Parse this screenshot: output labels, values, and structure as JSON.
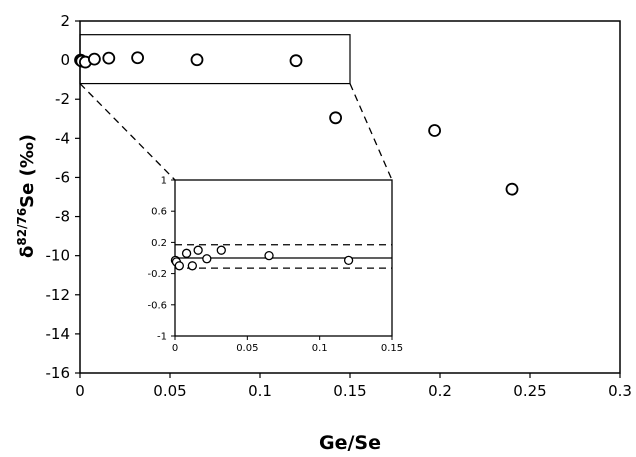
{
  "chart_data": [
    {
      "type": "scatter",
      "xlabel": "Ge/Se",
      "ylabel_main": "Se (‰)",
      "ylabel_delta": "δ",
      "ylabel_sup": "82/76",
      "xlim": [
        0,
        0.3
      ],
      "ylim": [
        -16,
        2
      ],
      "xticks": [
        "0",
        "0.05",
        "0.1",
        "0.15",
        "0.2",
        "0.25",
        "0.3"
      ],
      "yticks": [
        "2",
        "0",
        "-2",
        "-4",
        "-6",
        "-8",
        "-10",
        "-12",
        "-14",
        "-16"
      ],
      "grid": false,
      "series": [
        {
          "x": [
            0.0003,
            0.001,
            0.003,
            0.008,
            0.016,
            0.032,
            0.065,
            0.12,
            0.142,
            0.197,
            0.24
          ],
          "y": [
            0.0,
            -0.05,
            -0.1,
            0.05,
            0.1,
            0.12,
            0.02,
            -0.03,
            -2.95,
            -3.6,
            -6.6
          ]
        }
      ],
      "zoom_box": {
        "x": [
          0,
          0.15
        ],
        "y": [
          -1.2,
          1.3
        ]
      }
    },
    {
      "type": "scatter",
      "role": "inset",
      "xlim": [
        0,
        0.15
      ],
      "ylim": [
        -1,
        1
      ],
      "xticks": [
        "0",
        "0.05",
        "0.1",
        "0.15"
      ],
      "yticks": [
        "1",
        "0.6",
        "0.2",
        "-0.2",
        "-0.6",
        "-1"
      ],
      "series": [
        {
          "x": [
            0.0003,
            0.001,
            0.003,
            0.008,
            0.012,
            0.016,
            0.022,
            0.032,
            0.065,
            0.12
          ],
          "y": [
            -0.03,
            -0.05,
            -0.1,
            0.06,
            -0.1,
            0.1,
            -0.01,
            0.1,
            0.03,
            -0.03
          ]
        }
      ],
      "reference_line": 0.0,
      "bounds": [
        0.17,
        -0.13
      ]
    }
  ]
}
